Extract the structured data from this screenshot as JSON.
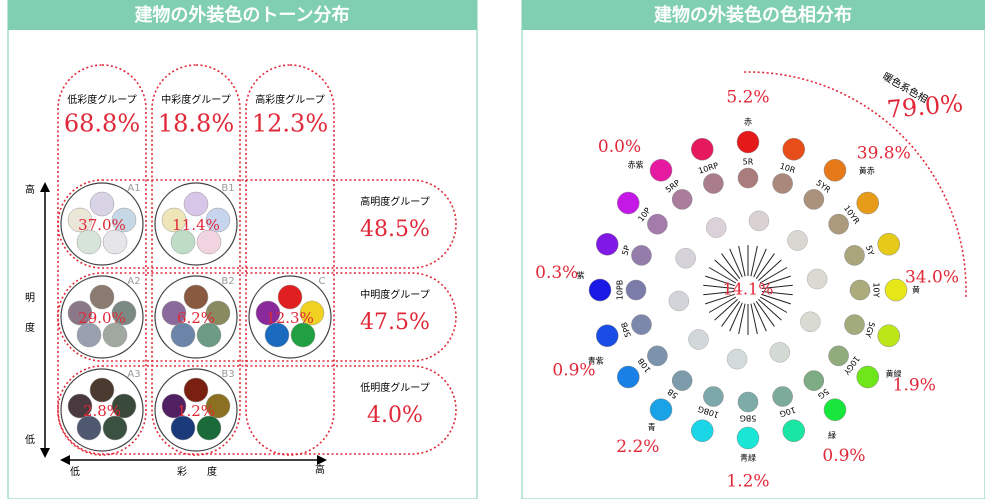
{
  "left": {
    "title": "建物の外装色のトーン分布",
    "columns": [
      {
        "label": "低彩度グループ",
        "value": "68.8%"
      },
      {
        "label": "中彩度グループ",
        "value": "18.8%"
      },
      {
        "label": "高彩度グループ",
        "value": "12.3%"
      }
    ],
    "rows": [
      {
        "label": "高明度グループ",
        "value": "48.5%"
      },
      {
        "label": "中明度グループ",
        "value": "47.5%"
      },
      {
        "label": "低明度グループ",
        "value": "4.0%"
      }
    ],
    "cells": [
      {
        "code": "A1",
        "value": "37.0%"
      },
      {
        "code": "B1",
        "value": "11.4%"
      },
      {
        "code": "A2",
        "value": "29.0%"
      },
      {
        "code": "B2",
        "value": "6.2%"
      },
      {
        "code": "C",
        "value": "12.3%"
      },
      {
        "code": "A3",
        "value": "2.8%"
      },
      {
        "code": "B3",
        "value": "1.2%"
      }
    ],
    "y_axis": [
      "高",
      "明",
      "度",
      "低"
    ],
    "x_axis": [
      "低",
      "彩",
      "度",
      "高"
    ]
  },
  "right": {
    "title": "建物の外装色の色相分布",
    "hues": [
      "5R",
      "10R",
      "5YR",
      "10YR",
      "5Y",
      "10Y",
      "5GY",
      "10GY",
      "5G",
      "10G",
      "5BG",
      "10BG",
      "5B",
      "10B",
      "5PB",
      "10PB",
      "5P",
      "10P",
      "5RP",
      "10RP"
    ],
    "sectors": [
      {
        "name": "赤",
        "value": "5.2%"
      },
      {
        "name": "黄赤",
        "value": "39.8%"
      },
      {
        "name": "黄",
        "value": "34.0%"
      },
      {
        "name": "黄緑",
        "value": "1.9%"
      },
      {
        "name": "緑",
        "value": "0.9%"
      },
      {
        "name": "青緑",
        "value": "1.2%"
      },
      {
        "name": "青",
        "value": "2.2%"
      },
      {
        "name": "青紫",
        "value": "0.9%"
      },
      {
        "name": "紫",
        "value": "0.3%"
      },
      {
        "name": "赤紫",
        "value": "0.0%"
      }
    ],
    "center": "14.1%",
    "warm": {
      "label": "暖色系色相",
      "value": "79.0%"
    }
  }
}
